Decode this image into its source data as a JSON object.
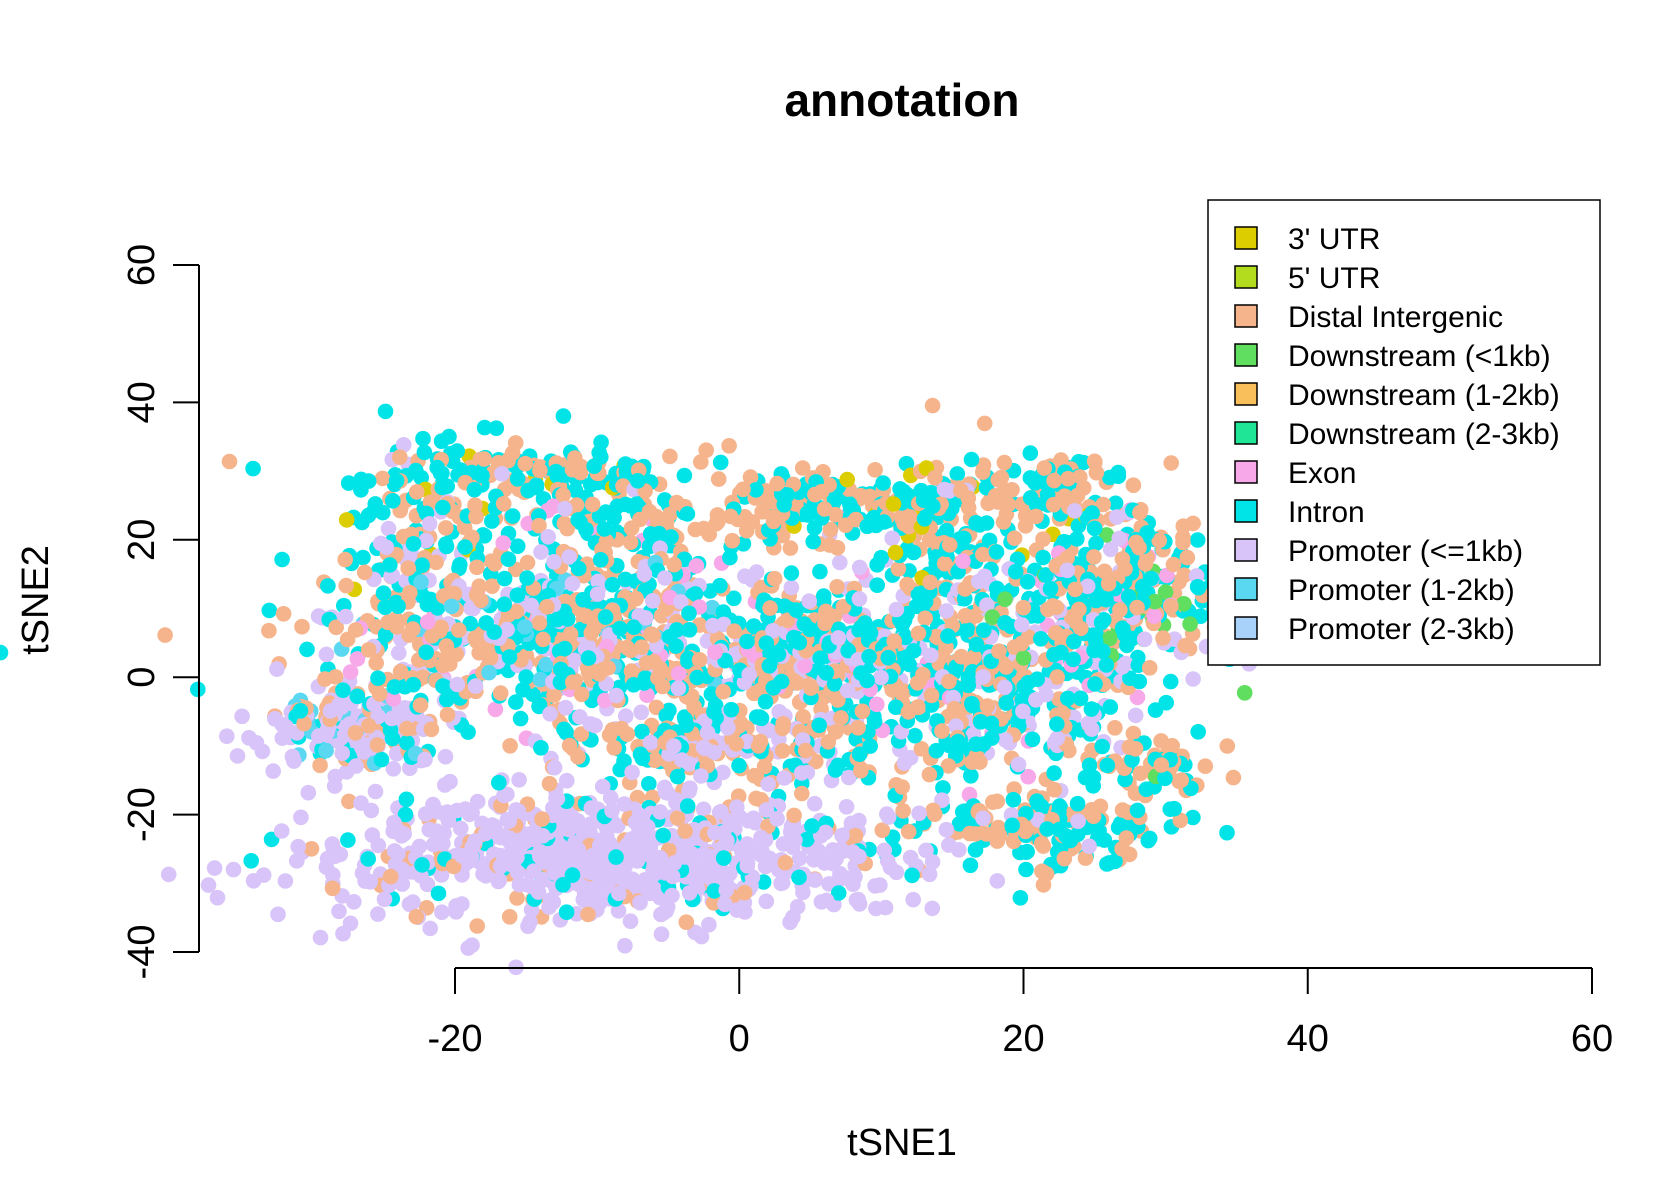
{
  "chart_data": {
    "type": "scatter",
    "title": "annotation",
    "xlabel": "tSNE1",
    "ylabel": "tSNE2",
    "xlim": [
      -20,
      60
    ],
    "ylim": [
      -40,
      60
    ],
    "x_ticks": [
      "-20",
      "0",
      "20",
      "40",
      "60"
    ],
    "y_ticks": [
      "-40",
      "-20",
      "0",
      "20",
      "40",
      "60"
    ],
    "grid": false,
    "legend_position": "top-right",
    "point_radius_units": 0.55,
    "legend": [
      {
        "name": "3' UTR",
        "color": "#dccd00"
      },
      {
        "name": "5' UTR",
        "color": "#b4dc1e"
      },
      {
        "name": "Distal Intergenic",
        "color": "#f6b48c"
      },
      {
        "name": "Downstream (<1kb)",
        "color": "#5fde5f"
      },
      {
        "name": "Downstream (1-2kb)",
        "color": "#f8bf5a"
      },
      {
        "name": "Downstream (2-3kb)",
        "color": "#1ee696"
      },
      {
        "name": "Exon",
        "color": "#f6a8e8"
      },
      {
        "name": "Intron",
        "color": "#00e4e8"
      },
      {
        "name": "Promoter (<=1kb)",
        "color": "#d8c4f8"
      },
      {
        "name": "Promoter (1-2kb)",
        "color": "#5ad8f2"
      },
      {
        "name": "Promoter (2-3kb)",
        "color": "#a8d2fa"
      }
    ],
    "clusters": [
      {
        "name": "left-lobe",
        "center": [
          -27,
          -8
        ],
        "spread": [
          3,
          3
        ],
        "n": 180,
        "mix": {
          "Promoter (<=1kb)": 0.6,
          "Distal Intergenic": 0.15,
          "Intron": 0.15,
          "Promoter (1-2kb)": 0.1
        }
      },
      {
        "name": "upper-left-arm",
        "center": [
          -22,
          20
        ],
        "spread": [
          3,
          6
        ],
        "n": 140,
        "mix": {
          "Intron": 0.5,
          "Distal Intergenic": 0.35,
          "Promoter (<=1kb)": 0.1,
          "3' UTR": 0.05
        }
      },
      {
        "name": "top-band",
        "center": [
          -15,
          30
        ],
        "spread": [
          6,
          2
        ],
        "n": 120,
        "mix": {
          "Intron": 0.5,
          "Distal Intergenic": 0.45,
          "3' UTR": 0.05
        }
      },
      {
        "name": "diagonal-ridge",
        "center": [
          -8,
          22
        ],
        "spread": [
          5,
          5
        ],
        "n": 160,
        "mix": {
          "Intron": 0.45,
          "Distal Intergenic": 0.45,
          "Exon": 0.05,
          "Promoter (<=1kb)": 0.05
        }
      },
      {
        "name": "central-mass",
        "center": [
          -12,
          5
        ],
        "spread": [
          9,
          6
        ],
        "n": 700,
        "mix": {
          "Distal Intergenic": 0.35,
          "Intron": 0.3,
          "Promoter (<=1kb)": 0.25,
          "Promoter (1-2kb)": 0.05,
          "Exon": 0.05
        }
      },
      {
        "name": "middle-band",
        "center": [
          5,
          3
        ],
        "spread": [
          6,
          5
        ],
        "n": 380,
        "mix": {
          "Intron": 0.4,
          "Distal Intergenic": 0.35,
          "Promoter (<=1kb)": 0.2,
          "Exon": 0.05
        }
      },
      {
        "name": "lower-mid-arm",
        "center": [
          -2,
          -10
        ],
        "spread": [
          6,
          3
        ],
        "n": 200,
        "mix": {
          "Distal Intergenic": 0.4,
          "Intron": 0.35,
          "Promoter (<=1kb)": 0.25
        }
      },
      {
        "name": "upper-mid",
        "center": [
          6,
          25
        ],
        "spread": [
          4,
          2.5
        ],
        "n": 140,
        "mix": {
          "Distal Intergenic": 0.55,
          "Intron": 0.4,
          "3' UTR": 0.05
        }
      },
      {
        "name": "upper-right-blob",
        "center": [
          15,
          20
        ],
        "spread": [
          3,
          6
        ],
        "n": 200,
        "mix": {
          "Distal Intergenic": 0.45,
          "Intron": 0.45,
          "3' UTR": 0.05,
          "Promoter (<=1kb)": 0.05
        }
      },
      {
        "name": "right-upper-arm",
        "center": [
          23,
          27
        ],
        "spread": [
          2,
          3
        ],
        "n": 70,
        "mix": {
          "Distal Intergenic": 0.5,
          "Intron": 0.45,
          "3' UTR": 0.05
        }
      },
      {
        "name": "right-mass",
        "center": [
          18,
          -2
        ],
        "spread": [
          5,
          7
        ],
        "n": 380,
        "mix": {
          "Intron": 0.45,
          "Distal Intergenic": 0.35,
          "Promoter (<=1kb)": 0.15,
          "Exon": 0.05
        }
      },
      {
        "name": "far-right-cluster",
        "center": [
          27,
          12
        ],
        "spread": [
          4,
          6
        ],
        "n": 300,
        "mix": {
          "Intron": 0.45,
          "Distal Intergenic": 0.35,
          "Promoter (<=1kb)": 0.1,
          "Downstream (<1kb)": 0.05,
          "Exon": 0.05
        }
      },
      {
        "name": "lower-right-arm",
        "center": [
          21,
          -22
        ],
        "spread": [
          5,
          3
        ],
        "n": 160,
        "mix": {
          "Intron": 0.5,
          "Distal Intergenic": 0.45,
          "Promoter (<=1kb)": 0.05
        }
      },
      {
        "name": "far-right-arm",
        "center": [
          29,
          -13
        ],
        "spread": [
          2,
          2
        ],
        "n": 60,
        "mix": {
          "Intron": 0.45,
          "Distal Intergenic": 0.5,
          "Downstream (<1kb)": 0.05
        }
      },
      {
        "name": "bottom-lower-lobe",
        "center": [
          -10,
          -26
        ],
        "spread": [
          10,
          5
        ],
        "n": 800,
        "mix": {
          "Promoter (<=1kb)": 0.8,
          "Intron": 0.1,
          "Distal Intergenic": 0.1
        }
      }
    ]
  }
}
